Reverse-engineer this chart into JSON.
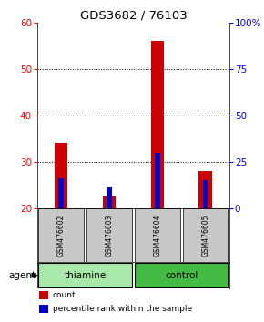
{
  "title": "GDS3682 / 76103",
  "samples": [
    "GSM476602",
    "GSM476603",
    "GSM476604",
    "GSM476605"
  ],
  "count_values": [
    34.0,
    22.5,
    56.0,
    28.0
  ],
  "percentile_values": [
    26.5,
    24.5,
    32.0,
    26.0
  ],
  "bar_bottom": 20,
  "ylim": [
    20,
    60
  ],
  "yticks_left": [
    20,
    30,
    40,
    50,
    60
  ],
  "yticks_right_vals": [
    0,
    25,
    50,
    75
  ],
  "yticks_right_labels": [
    "0",
    "25",
    "50",
    "75",
    "100%"
  ],
  "count_color": "#CC0000",
  "percentile_color": "#0000CC",
  "count_bar_width": 0.28,
  "pct_bar_width": 0.1,
  "sample_bg_color": "#C8C8C8",
  "thiamine_color": "#A8E8A8",
  "control_color": "#44BB44",
  "dotted_yticks": [
    30,
    40,
    50
  ],
  "top_right_label": "100%"
}
